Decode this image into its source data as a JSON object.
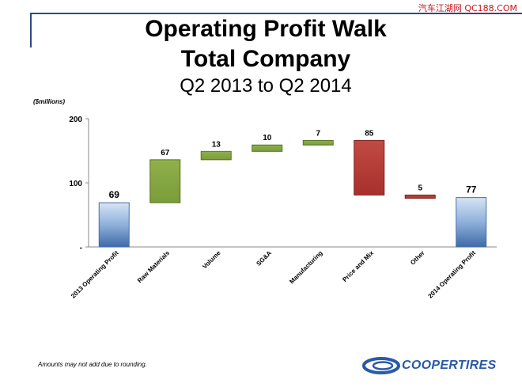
{
  "watermark": "汽车江湖网 QC188.COM",
  "header": {
    "title_line1": "Operating Profit Walk",
    "title_line2": "Total Company",
    "subtitle": "Q2 2013 to Q2 2014"
  },
  "units_label": "($millions)",
  "footnote": "Amounts may not add due to rounding.",
  "logo": {
    "text": "COOPERTIRES"
  },
  "colors": {
    "total": "#8eb0da",
    "increase": "#7a9c3a",
    "decrease": "#a8302c",
    "axis": "#888888",
    "brand": "#2a5aa8"
  },
  "chart_data": {
    "type": "bar",
    "subtype": "waterfall",
    "categories": [
      "2013 Operating Profit",
      "Raw Materials",
      "Volume",
      "SG&A",
      "Manufacturing",
      "Price and Mix",
      "Other",
      "2014 Operating Profit"
    ],
    "values": [
      69,
      67,
      13,
      10,
      7,
      -85,
      -5,
      77
    ],
    "data_labels": [
      "69",
      "67",
      "13",
      "10",
      "7",
      "85",
      "5",
      "77"
    ],
    "kinds": [
      "total",
      "increase",
      "increase",
      "increase",
      "increase",
      "decrease",
      "decrease",
      "total"
    ],
    "ylim": [
      0,
      200
    ],
    "yticks": [
      {
        "value": 0,
        "label": "-"
      },
      {
        "value": 100,
        "label": "100"
      },
      {
        "value": 200,
        "label": "200"
      }
    ],
    "ylabel": "($millions)",
    "grid": false,
    "legend": "none"
  }
}
